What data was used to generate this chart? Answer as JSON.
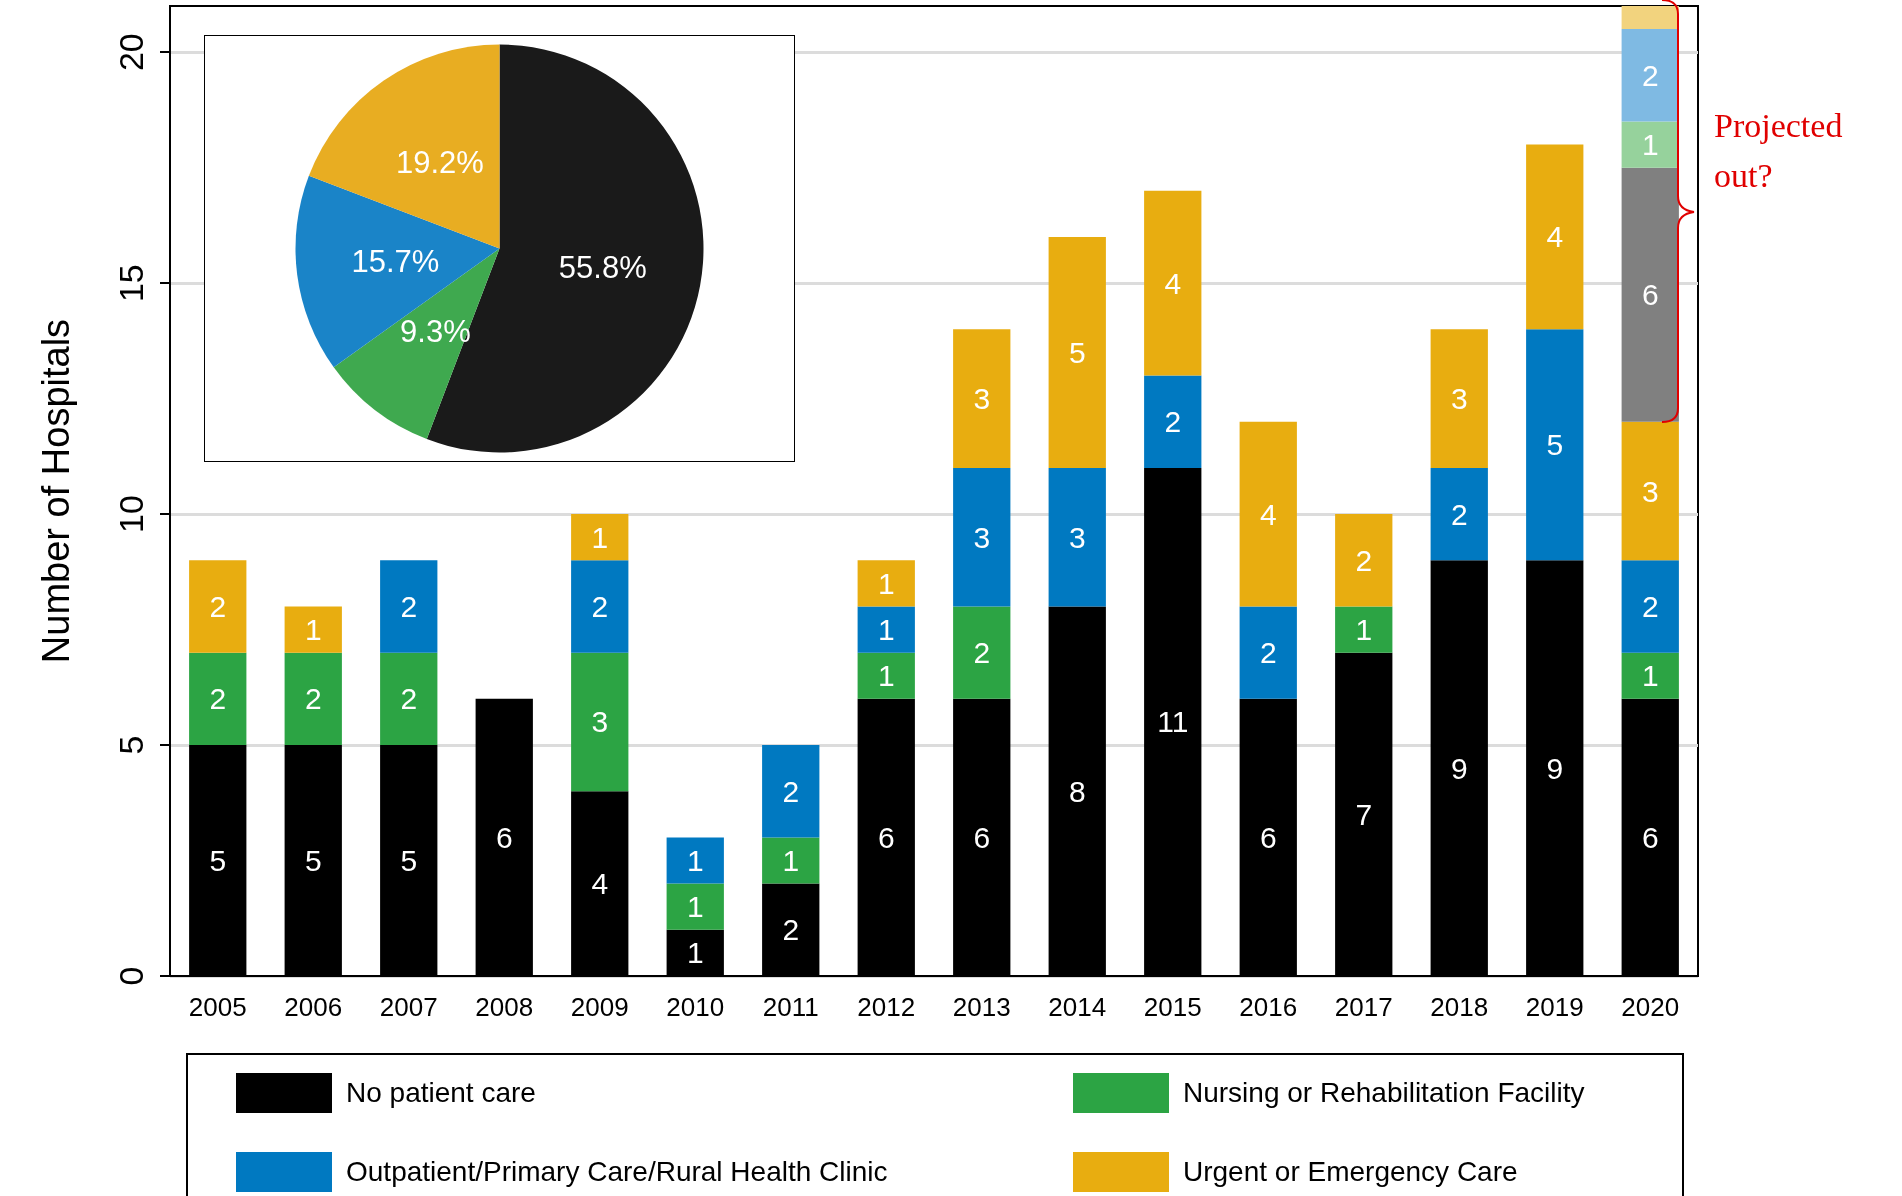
{
  "chart_data": [
    {
      "type": "bar",
      "stacked": true,
      "ylabel": "Number of Hospitals",
      "categories": [
        "2005",
        "2006",
        "2007",
        "2008",
        "2009",
        "2010",
        "2011",
        "2012",
        "2013",
        "2014",
        "2015",
        "2016",
        "2017",
        "2018",
        "2019",
        "2020"
      ],
      "series": [
        {
          "name": "No patient care",
          "color": "#000000",
          "values": [
            5,
            5,
            5,
            6,
            4,
            1,
            2,
            6,
            6,
            8,
            11,
            6,
            7,
            9,
            9,
            6
          ]
        },
        {
          "name": "Nursing or Rehabilitation Facility",
          "color": "#2ca444",
          "values": [
            2,
            2,
            2,
            null,
            3,
            1,
            1,
            1,
            2,
            null,
            null,
            null,
            1,
            null,
            null,
            1
          ]
        },
        {
          "name": "Outpatient/Primary Care/Rural Health Clinic",
          "color": "#0079c1",
          "values": [
            null,
            null,
            2,
            null,
            2,
            1,
            2,
            1,
            3,
            3,
            2,
            2,
            null,
            2,
            5,
            2
          ]
        },
        {
          "name": "Urgent or Emergency Care",
          "color": "#e8ad10",
          "values": [
            2,
            1,
            null,
            null,
            1,
            null,
            null,
            1,
            3,
            5,
            4,
            4,
            2,
            3,
            4,
            3
          ]
        },
        {
          "color": "#808080",
          "values": [
            null,
            null,
            null,
            null,
            null,
            null,
            null,
            null,
            null,
            null,
            null,
            null,
            null,
            null,
            null,
            5.5
          ],
          "value_labels": [
            null,
            null,
            null,
            null,
            null,
            null,
            null,
            null,
            null,
            null,
            null,
            null,
            null,
            null,
            null,
            "6"
          ]
        },
        {
          "color": "#96d29c",
          "values": [
            null,
            null,
            null,
            null,
            null,
            null,
            null,
            null,
            null,
            null,
            null,
            null,
            null,
            null,
            null,
            1
          ],
          "value_labels": [
            null,
            null,
            null,
            null,
            null,
            null,
            null,
            null,
            null,
            null,
            null,
            null,
            null,
            null,
            null,
            "1"
          ]
        },
        {
          "color": "#7fbae3",
          "values": [
            null,
            null,
            null,
            null,
            null,
            null,
            null,
            null,
            null,
            null,
            null,
            null,
            null,
            null,
            null,
            2
          ],
          "value_labels": [
            null,
            null,
            null,
            null,
            null,
            null,
            null,
            null,
            null,
            null,
            null,
            null,
            null,
            null,
            null,
            "2"
          ]
        },
        {
          "color": "#f2d37e",
          "values": [
            null,
            null,
            null,
            null,
            null,
            null,
            null,
            null,
            null,
            null,
            null,
            null,
            null,
            null,
            null,
            0.5
          ],
          "value_labels": [
            null,
            null,
            null,
            null,
            null,
            null,
            null,
            null,
            null,
            null,
            null,
            null,
            null,
            null,
            null,
            null
          ]
        }
      ],
      "data_labels": true,
      "ylim": [
        0,
        21
      ],
      "yticks": [
        0,
        5,
        10,
        15,
        20
      ],
      "grid": "y",
      "legend": "bottom",
      "annotations": [
        "Projected out?"
      ]
    },
    {
      "type": "pie",
      "categories": [
        null,
        null,
        null,
        null
      ],
      "values": [
        55.8,
        9.3,
        15.7,
        19.2
      ],
      "colors": [
        "#1a1a1a",
        "#3fa94f",
        "#1a84c8",
        "#e8ad22"
      ],
      "value_labels": [
        "55.8%",
        "9.3%",
        "15.7%",
        "19.2%"
      ]
    }
  ]
}
